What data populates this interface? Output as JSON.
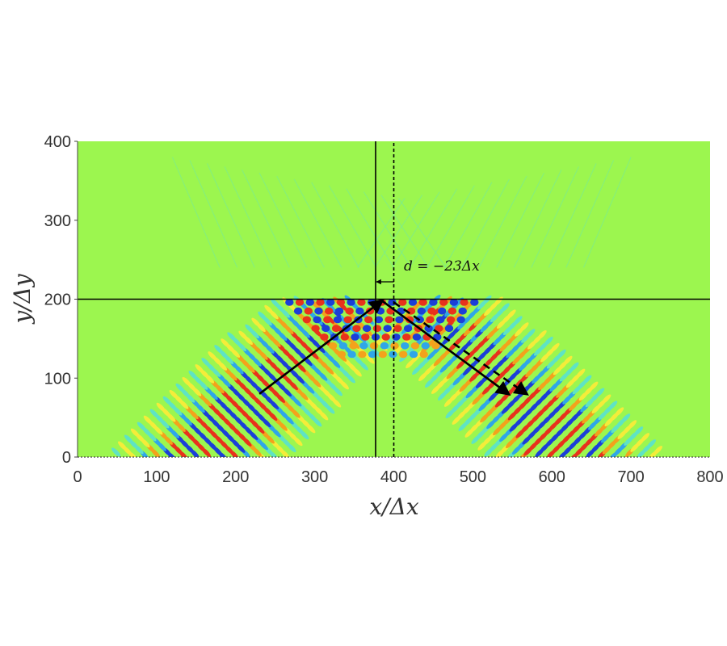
{
  "chart_data": {
    "type": "heatmap",
    "title": "",
    "xlabel": "x/Δx",
    "ylabel": "y/Δy",
    "xlim": [
      0,
      800
    ],
    "ylim": [
      0,
      400
    ],
    "x_ticks": [
      "0",
      "100",
      "200",
      "300",
      "400",
      "500",
      "600",
      "700",
      "800"
    ],
    "y_ticks": [
      "0",
      "100",
      "200",
      "300",
      "400"
    ],
    "grid": false,
    "colors": {
      "background": "#9cf64f",
      "positive": "#e8321c",
      "positive_mid": "#f3a21c",
      "positive_low": "#f4ec3a",
      "negative": "#1b3fd8",
      "negative_mid": "#2fa6e8",
      "negative_low": "#5fe3c4",
      "lines": "#000000"
    },
    "reference_lines": {
      "interface_y": 200,
      "solid_vertical_x": 377,
      "dashed_vertical_x": 400
    },
    "beams": [
      {
        "name": "incident",
        "style": "solid",
        "from": [
          230,
          80
        ],
        "to": [
          385,
          198
        ]
      },
      {
        "name": "reflected",
        "style": "solid",
        "from": [
          385,
          198
        ],
        "to": [
          545,
          80
        ]
      },
      {
        "name": "reflected_reference",
        "style": "dashed",
        "from": [
          400,
          196
        ],
        "to": [
          568,
          80
        ]
      }
    ],
    "annotation": {
      "text": "d = −23Δx",
      "shift_arrow_from_x": 400,
      "shift_arrow_to_x": 377,
      "shift_arrow_y": 222
    }
  }
}
